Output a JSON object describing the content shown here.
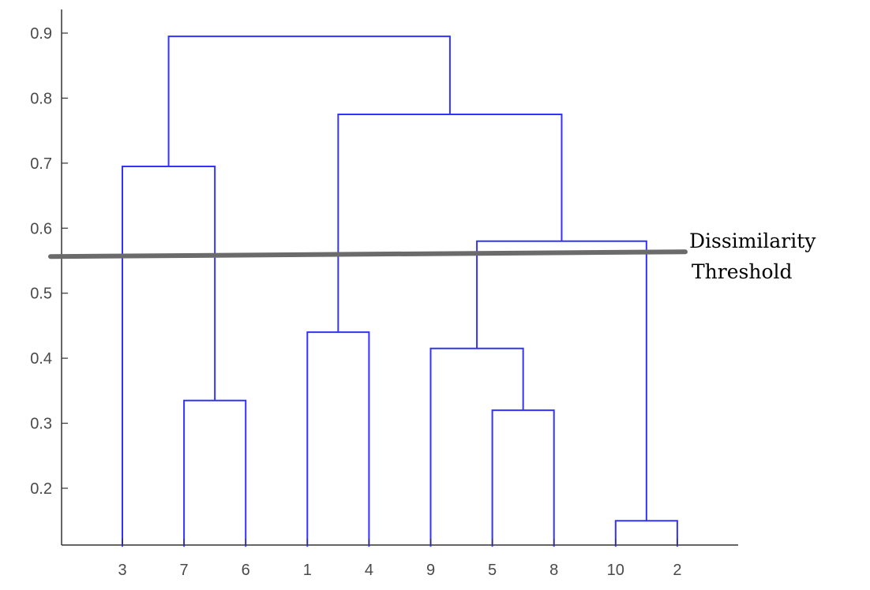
{
  "chart_data": {
    "type": "dendrogram",
    "leaves": [
      "3",
      "7",
      "6",
      "1",
      "4",
      "9",
      "5",
      "8",
      "10",
      "2"
    ],
    "y_ticks": [
      "0.2",
      "0.3",
      "0.4",
      "0.5",
      "0.6",
      "0.7",
      "0.8",
      "0.9"
    ],
    "ylim": [
      0.11,
      0.9
    ],
    "leaf_height": 0.11,
    "merges": [
      {
        "left": "10",
        "right": "2",
        "height": 0.15
      },
      {
        "left": "5",
        "right": "8",
        "height": 0.32
      },
      {
        "left": "7",
        "right": "6",
        "height": 0.335
      },
      {
        "left": "9",
        "right": "(5,8)",
        "height": 0.415
      },
      {
        "left": "1",
        "right": "4",
        "height": 0.44
      },
      {
        "left": "(9,5,8)",
        "right": "(10,2)",
        "height": 0.58
      },
      {
        "left": "3",
        "right": "(7,6)",
        "height": 0.695
      },
      {
        "left": "(1,4)",
        "right": "(9,5,8,10,2)",
        "height": 0.775
      },
      {
        "left": "(3,7,6)",
        "right": "(1,4,9,5,8,10,2)",
        "height": 0.895
      }
    ],
    "threshold": {
      "value": 0.56,
      "label_lines": [
        "Dissimilarity",
        "Threshold"
      ]
    },
    "colors": {
      "links": "#3333ff",
      "threshold": "#6b6b6b",
      "axis": "#333333",
      "text": "#4a4a4a"
    }
  }
}
